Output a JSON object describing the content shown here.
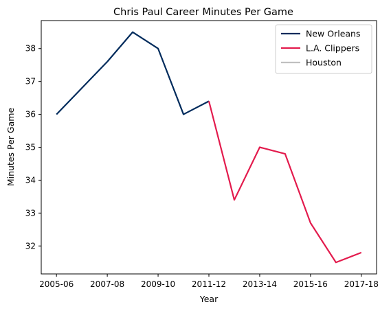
{
  "chart_data": {
    "type": "line",
    "title": "Chris Paul Career Minutes Per Game",
    "xlabel": "Year",
    "ylabel": "Minutes Per Game",
    "x_tick_labels": [
      "2005-06",
      "2007-08",
      "2009-10",
      "2011-12",
      "2013-14",
      "2015-16",
      "2017-18"
    ],
    "y_tick_labels": [
      "32",
      "33",
      "34",
      "35",
      "36",
      "37",
      "38"
    ],
    "ylim": [
      31.15,
      38.85
    ],
    "legend_position": "top-right",
    "grid": false,
    "series": [
      {
        "name": "New Orleans",
        "color": "#002B5C",
        "points": [
          [
            "2005-06",
            36.0
          ],
          [
            "2006-07",
            36.8
          ],
          [
            "2007-08",
            37.6
          ],
          [
            "2008-09",
            38.5
          ],
          [
            "2009-10",
            38.0
          ],
          [
            "2010-11",
            36.0
          ],
          [
            "2011-12",
            36.4
          ]
        ]
      },
      {
        "name": "L.A. Clippers",
        "color": "#E31B4D",
        "points": [
          [
            "2011-12",
            36.4
          ],
          [
            "2012-13",
            33.4
          ],
          [
            "2013-14",
            35.0
          ],
          [
            "2014-15",
            34.8
          ],
          [
            "2015-16",
            32.7
          ],
          [
            "2016-17",
            31.5
          ],
          [
            "2017-18",
            31.8
          ]
        ]
      },
      {
        "name": "Houston",
        "color": "#C0C0C0",
        "points": []
      }
    ]
  }
}
